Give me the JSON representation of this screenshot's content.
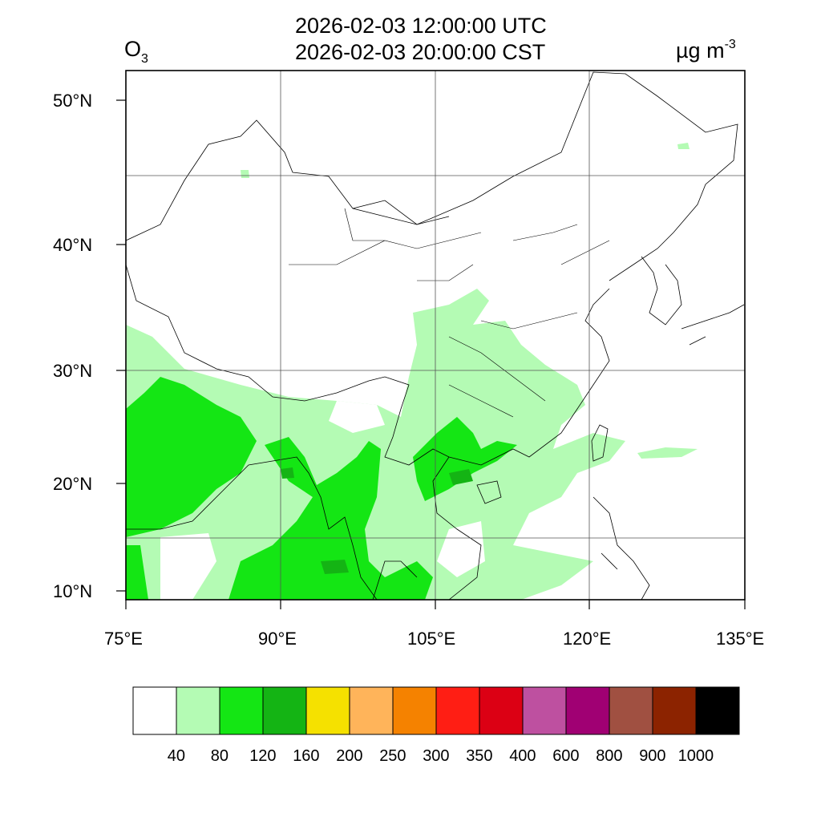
{
  "title": {
    "line1": "2026-02-03 12:00:00 UTC",
    "line2": "2026-02-03 20:00:00 CST"
  },
  "species": {
    "base": "O",
    "subscript": "3"
  },
  "units": {
    "base": "µg m",
    "superscript": "-3"
  },
  "map": {
    "lon_range": [
      75,
      135
    ],
    "lat_range": [
      9,
      52
    ],
    "lon_ticks": [
      "75°E",
      "90°E",
      "105°E",
      "120°E",
      "135°E"
    ],
    "lat_ticks": [
      "50°N",
      "40°N",
      "30°N",
      "20°N",
      "10°N"
    ],
    "gridlines": true
  },
  "colorbar": {
    "colors": [
      "#ffffff",
      "#b4fbb4",
      "#14e614",
      "#14b414",
      "#f5e100",
      "#ffb45a",
      "#f58200",
      "#ff1e14",
      "#dc0014",
      "#be50a0",
      "#a00073",
      "#a05041",
      "#8c2300",
      "#000000"
    ],
    "labels": [
      "40",
      "80",
      "120",
      "160",
      "200",
      "250",
      "300",
      "350",
      "400",
      "600",
      "800",
      "900",
      "1000"
    ]
  }
}
